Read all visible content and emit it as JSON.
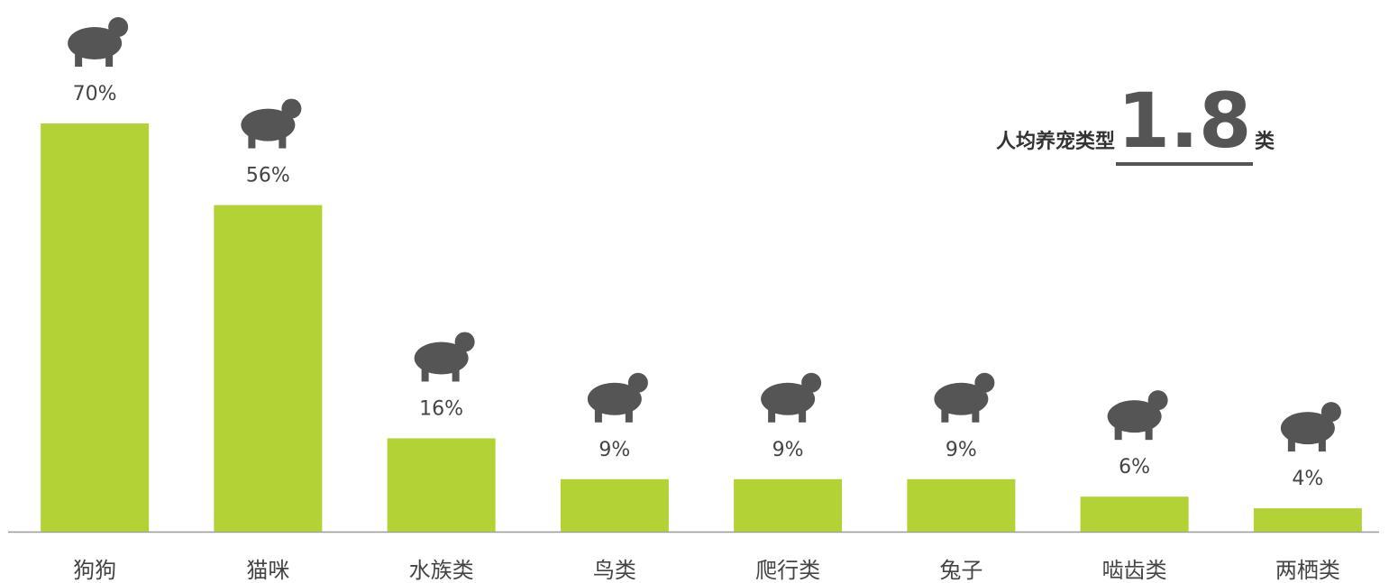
{
  "chart_data": {
    "type": "bar",
    "categories": [
      "狗狗",
      "猫咪",
      "水族类",
      "鸟类",
      "爬行类",
      "兔子",
      "啮齿类",
      "两栖类"
    ],
    "values": [
      70,
      56,
      16,
      9,
      9,
      9,
      6,
      4
    ],
    "value_labels": [
      "70%",
      "56%",
      "16%",
      "9%",
      "9%",
      "9%",
      "6%",
      "4%"
    ],
    "color": "#b2d235",
    "ylim": [
      0,
      70
    ],
    "annotation": {
      "prefix": "人均养宠类型",
      "value": 1.8,
      "suffix": "类"
    }
  }
}
